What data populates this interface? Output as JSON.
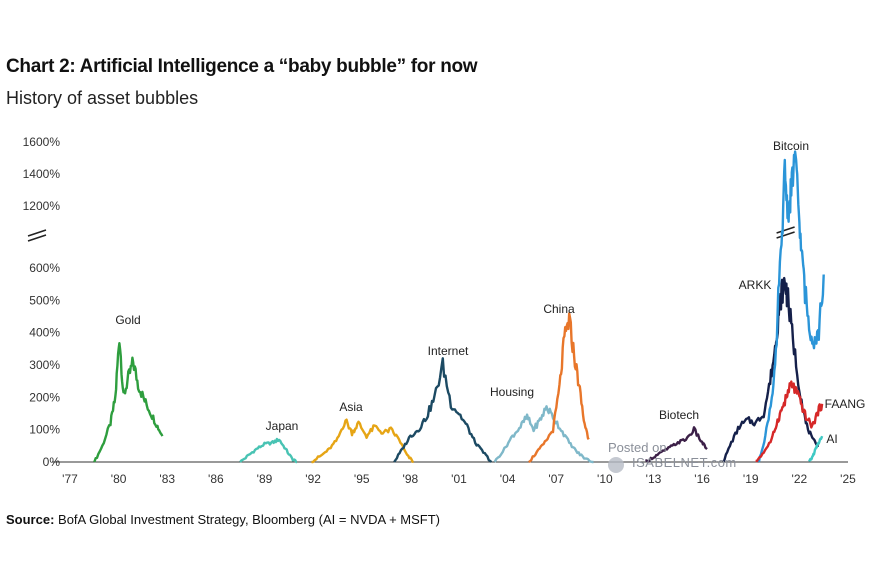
{
  "header": {
    "title": "Chart 2: Artificial Intelligence a “baby bubble” for now",
    "subtitle": "History of asset bubbles"
  },
  "source": {
    "label": "Source:",
    "text": "BofA Global Investment Strategy, Bloomberg (AI = NVDA + MSFT)"
  },
  "watermark": {
    "line1": "Posted on",
    "line2": "ISABELNET.com"
  },
  "chart_data": {
    "type": "line",
    "title": "Chart 2: Artificial Intelligence a “baby bubble” for now",
    "subtitle": "History of asset bubbles",
    "xlabel": "",
    "ylabel": "",
    "x_ticks": [
      "'77",
      "'80",
      "'83",
      "'86",
      "'89",
      "'92",
      "'95",
      "'98",
      "'01",
      "'04",
      "'07",
      "'10",
      "'13",
      "'16",
      "'19",
      "'22",
      "'25"
    ],
    "y_ticks": [
      "0%",
      "100%",
      "200%",
      "300%",
      "400%",
      "500%",
      "600%",
      "1200%",
      "1400%",
      "1600%"
    ],
    "xlim": [
      1977,
      2025
    ],
    "ylim": [
      0,
      1600
    ],
    "axis_break": "between 600% and 1200%",
    "grid": false,
    "legend": "none (series labelled directly on the chart)",
    "series": [
      {
        "name": "Gold",
        "color": "#2e9e3e",
        "x": [
          1978.5,
          1979.0,
          1979.5,
          1979.8,
          1980.05,
          1980.3,
          1980.6,
          1980.9,
          1981.2,
          1981.6,
          1982.0,
          1982.4,
          1982.7
        ],
        "y": [
          0,
          50,
          120,
          200,
          390,
          200,
          260,
          310,
          240,
          190,
          150,
          110,
          80
        ]
      },
      {
        "name": "Japan",
        "color": "#48c3b3",
        "x": [
          1987.5,
          1988.0,
          1988.5,
          1989.0,
          1989.5,
          1989.9,
          1990.3,
          1990.7,
          1991.0
        ],
        "y": [
          0,
          20,
          40,
          55,
          60,
          70,
          40,
          10,
          0
        ]
      },
      {
        "name": "Asia",
        "color": "#e6a515",
        "x": [
          1991.9,
          1992.5,
          1993.0,
          1993.5,
          1994.0,
          1994.4,
          1994.8,
          1995.3,
          1995.8,
          1996.3,
          1996.8,
          1997.3,
          1997.8,
          1998.2
        ],
        "y": [
          0,
          20,
          40,
          70,
          130,
          90,
          120,
          80,
          110,
          90,
          100,
          70,
          20,
          0
        ]
      },
      {
        "name": "Internet",
        "color": "#1c4a63",
        "x": [
          1997.0,
          1997.5,
          1998.0,
          1998.5,
          1999.0,
          1999.5,
          2000.0,
          2000.5,
          2001.0,
          2001.5,
          2002.0,
          2002.5,
          2003.0
        ],
        "y": [
          0,
          40,
          80,
          100,
          140,
          200,
          300,
          180,
          150,
          110,
          60,
          30,
          0
        ]
      },
      {
        "name": "Housing",
        "color": "#7fb8c9",
        "x": [
          2003.2,
          2003.8,
          2004.3,
          2004.8,
          2005.2,
          2005.6,
          2006.0,
          2006.4,
          2006.8,
          2007.3,
          2007.8,
          2008.3,
          2008.8,
          2009.3
        ],
        "y": [
          0,
          40,
          80,
          110,
          140,
          100,
          130,
          170,
          140,
          100,
          60,
          30,
          10,
          0
        ]
      },
      {
        "name": "China",
        "color": "#e8762a",
        "x": [
          2005.3,
          2005.8,
          2006.3,
          2006.8,
          2007.2,
          2007.5,
          2007.8,
          2008.1,
          2008.4,
          2008.7,
          2009.0
        ],
        "y": [
          0,
          30,
          60,
          100,
          230,
          380,
          440,
          330,
          240,
          130,
          70
        ]
      },
      {
        "name": "Biotech",
        "color": "#3c2048",
        "x": [
          2012.5,
          2013.0,
          2013.5,
          2014.0,
          2014.5,
          2015.0,
          2015.5,
          2016.0,
          2016.3
        ],
        "y": [
          0,
          15,
          30,
          45,
          60,
          70,
          100,
          60,
          40
        ]
      },
      {
        "name": "ARKK",
        "color": "#15204a",
        "x": [
          2017.3,
          2017.8,
          2018.3,
          2018.8,
          2019.3,
          2019.8,
          2020.2,
          2020.5,
          2020.7,
          2020.9,
          2021.1,
          2021.3,
          2021.6,
          2022.0,
          2022.4,
          2022.8,
          2023.2
        ],
        "y": [
          0,
          60,
          110,
          130,
          120,
          150,
          250,
          350,
          450,
          520,
          560,
          500,
          380,
          230,
          120,
          70,
          50
        ]
      },
      {
        "name": "Bitcoin",
        "color": "#2b95d8",
        "x": [
          2019.5,
          2019.9,
          2020.3,
          2020.6,
          2020.9,
          2021.1,
          2021.3,
          2021.5,
          2021.7,
          2021.9,
          2022.1,
          2022.3,
          2022.6,
          2022.9,
          2023.2,
          2023.5
        ],
        "y": [
          0,
          80,
          200,
          350,
          800,
          1450,
          1100,
          1300,
          1500,
          1300,
          800,
          550,
          420,
          380,
          400,
          580
        ]
      },
      {
        "name": "FAANG",
        "color": "#d62828",
        "x": [
          2019.3,
          2019.8,
          2020.3,
          2020.6,
          2020.9,
          2021.2,
          2021.5,
          2021.8,
          2022.1,
          2022.4,
          2022.8,
          2023.1,
          2023.4
        ],
        "y": [
          0,
          30,
          70,
          120,
          160,
          200,
          240,
          220,
          180,
          140,
          110,
          150,
          180
        ]
      },
      {
        "name": "AI",
        "color": "#3ec9c4",
        "x": [
          2022.6,
          2022.8,
          2023.0,
          2023.2,
          2023.4
        ],
        "y": [
          0,
          15,
          40,
          60,
          80
        ]
      }
    ],
    "labels": [
      {
        "text": "Gold",
        "series": "Gold"
      },
      {
        "text": "Japan",
        "series": "Japan"
      },
      {
        "text": "Asia",
        "series": "Asia"
      },
      {
        "text": "Internet",
        "series": "Internet"
      },
      {
        "text": "Housing",
        "series": "Housing"
      },
      {
        "text": "China",
        "series": "China"
      },
      {
        "text": "Biotech",
        "series": "Biotech"
      },
      {
        "text": "ARKK",
        "series": "ARKK"
      },
      {
        "text": "Bitcoin",
        "series": "Bitcoin"
      },
      {
        "text": "FAANG",
        "series": "FAANG"
      },
      {
        "text": "AI",
        "series": "AI"
      }
    ]
  }
}
